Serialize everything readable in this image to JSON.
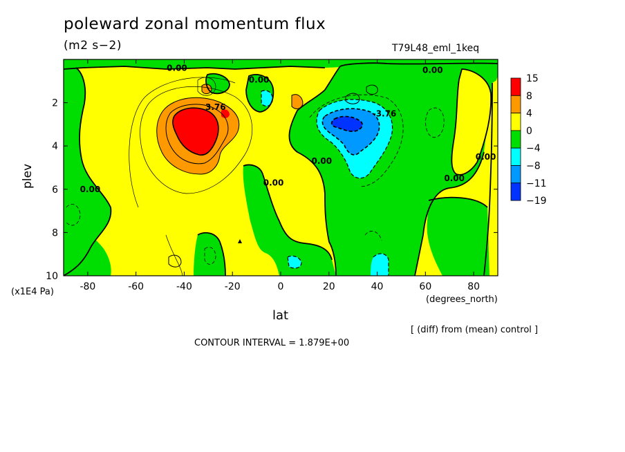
{
  "title": "poleward zonal momentum flux",
  "units": "(m2 s−2)",
  "run_name": "T79L48_eml_1keq",
  "diff_note": "[ (diff) from (mean) control ]",
  "contour_interval": "CONTOUR INTERVAL = 1.879E+00",
  "chart_data": {
    "type": "contour",
    "xlabel": "lat",
    "x_unit": "(degrees_north)",
    "ylabel": "plev",
    "y_unit": "(x1E4 Pa)",
    "xlim": [
      -90,
      90
    ],
    "ylim": [
      10,
      0
    ],
    "x_ticks": [
      -80,
      -60,
      -40,
      -20,
      0,
      20,
      40,
      60,
      80
    ],
    "y_ticks": [
      2,
      4,
      6,
      8,
      10
    ],
    "colorbar": {
      "levels": [
        "15",
        "8",
        "4",
        "0",
        "−4",
        "−8",
        "−11",
        "−19"
      ],
      "colors": [
        "#ff0000",
        "#ff9900",
        "#ffff00",
        "#00dd00",
        "#00ffff",
        "#0099ff",
        "#0033ff"
      ]
    },
    "contour_labels": [
      {
        "text": "0.00",
        "lat": -43,
        "plev": 0.4
      },
      {
        "text": "0.00",
        "lat": -9,
        "plev": 0.95
      },
      {
        "text": "3.76",
        "lat": -27,
        "plev": 2.2
      },
      {
        "text": "0.00",
        "lat": -79,
        "plev": 6.0
      },
      {
        "text": "0.00",
        "lat": -3,
        "plev": 5.7
      },
      {
        "text": "0.00",
        "lat": 17,
        "plev": 4.7
      },
      {
        "text": "-3.76",
        "lat": 43,
        "plev": 2.5
      },
      {
        "text": "0.00",
        "lat": 63,
        "plev": 0.5
      },
      {
        "text": "0.00",
        "lat": 72,
        "plev": 5.5
      },
      {
        "text": "0.00",
        "lat": 85,
        "plev": 4.5
      }
    ]
  }
}
